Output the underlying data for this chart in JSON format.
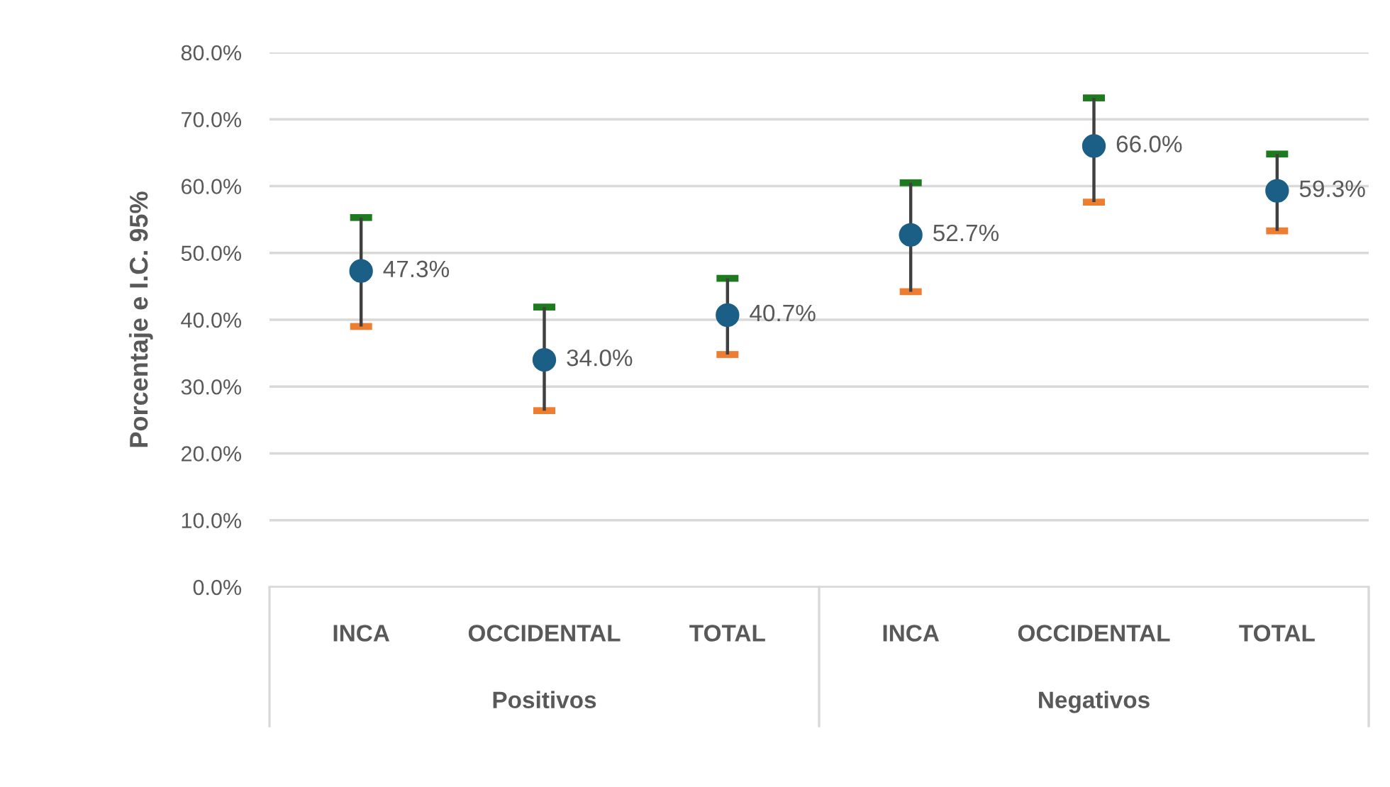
{
  "chart_data": {
    "type": "scatter",
    "ylabel": "Porcentaje e I.C. 95%",
    "categories": [
      "INCA",
      "OCCIDENTAL",
      "TOTAL",
      "INCA",
      "OCCIDENTAL",
      "TOTAL"
    ],
    "series": [
      {
        "color": "#1b5e86",
        "values": [
          47.3,
          34.0,
          40.7,
          52.7,
          66.0,
          59.3
        ],
        "errors": [
          [
            39.0,
            55.3
          ],
          [
            26.4,
            41.9
          ],
          [
            34.8,
            46.2
          ],
          [
            44.2,
            60.5
          ],
          [
            57.6,
            73.2
          ],
          [
            53.3,
            64.8
          ]
        ],
        "value_labels": [
          "47.3%",
          "34.0%",
          "40.7%",
          "52.7%",
          "66.0%",
          "59.3%"
        ]
      }
    ],
    "annotations": [
      "Positivos",
      "Negativos"
    ],
    "ylim": [
      0,
      80
    ],
    "yticks": [
      {
        "value": 0,
        "label": "0.0%"
      },
      {
        "value": 10,
        "label": "10.0%"
      },
      {
        "value": 20,
        "label": "20.0%"
      },
      {
        "value": 30,
        "label": "30.0%"
      },
      {
        "value": 40,
        "label": "40.0%"
      },
      {
        "value": 50,
        "label": "50.0%"
      },
      {
        "value": 60,
        "label": "60.0%"
      },
      {
        "value": 70,
        "label": "70.0%"
      },
      {
        "value": 80,
        "label": "80.0%"
      }
    ],
    "grid": "y",
    "marker": "circle"
  }
}
